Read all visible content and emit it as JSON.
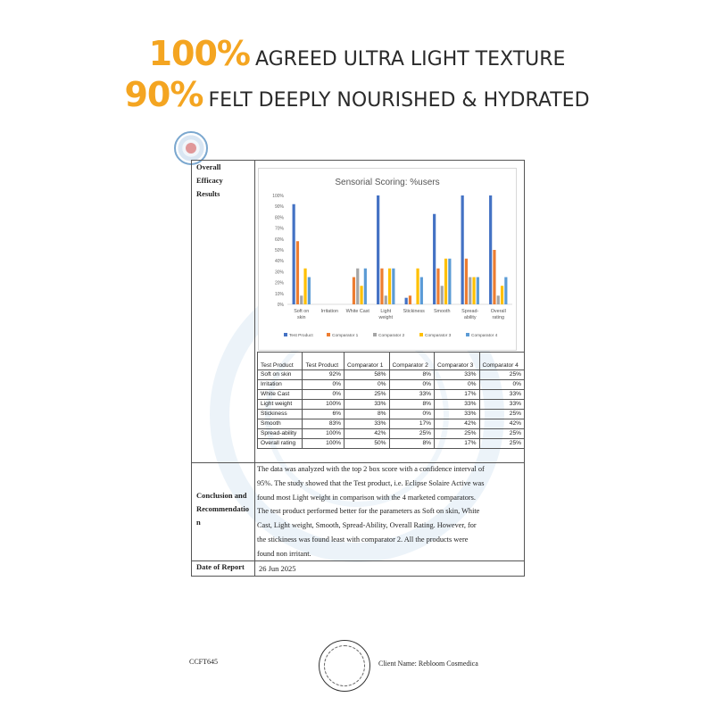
{
  "headline": {
    "line1": {
      "percent": "100%",
      "text": "AGREED ULTRA LIGHT TEXTURE"
    },
    "line2": {
      "percent": "90%",
      "text": "FELT DEEPLY NOURISHED & HYDRATED"
    }
  },
  "report": {
    "efficacy_label": [
      "Overall",
      "Efficacy",
      "Results"
    ],
    "conclusion_label": [
      "Conclusion and",
      "Recommendatio",
      "n"
    ],
    "conclusion_lines": [
      "The data was analyzed with the top 2 box score with a confidence interval of",
      "95%. The study showed that the Test product, i.e. Eclipse Solaire Active was",
      "found most Light weight in comparison with the 4 marketed comparators.",
      "The test product performed better for the parameters as Soft on skin, White",
      "Cast, Light weight, Smooth, Spread-Ability, Overall Rating. However, for",
      "the stickiness was found least with comparator 2. All the products were",
      "found non irritant."
    ],
    "date_label": "Date of Report",
    "date_value": "26 Jun 2025"
  },
  "table": {
    "headers": [
      "Test Product",
      "Test Product",
      "Comparator 1",
      "Comparator 2",
      "Comparator 3",
      "Comparator 4"
    ],
    "rows": [
      [
        "Soft on skin",
        "92%",
        "58%",
        "8%",
        "33%",
        "25%"
      ],
      [
        "Irritation",
        "0%",
        "0%",
        "0%",
        "0%",
        "0%"
      ],
      [
        "White Cast",
        "0%",
        "25%",
        "33%",
        "17%",
        "33%"
      ],
      [
        "Light weight",
        "100%",
        "33%",
        "8%",
        "33%",
        "33%"
      ],
      [
        "Stickiness",
        "6%",
        "8%",
        "0%",
        "33%",
        "25%"
      ],
      [
        "Smooth",
        "83%",
        "33%",
        "17%",
        "42%",
        "42%"
      ],
      [
        "Spread-ability",
        "100%",
        "42%",
        "25%",
        "25%",
        "25%"
      ],
      [
        "Overall rating",
        "100%",
        "50%",
        "8%",
        "17%",
        "25%"
      ]
    ]
  },
  "footer": {
    "code": "CCFT645",
    "client": "Client Name: Rebloom Cosmedica"
  },
  "colors": {
    "accent": "#f4a521",
    "series": [
      "#4472c4",
      "#ed7d31",
      "#a5a5a5",
      "#ffc000",
      "#5b9bd5"
    ]
  },
  "chart_data": {
    "type": "bar",
    "title": "Sensorial Scoring: %users",
    "categories": [
      [
        "Soft on",
        "skin"
      ],
      [
        "Irritation"
      ],
      [
        "White Cast"
      ],
      [
        "Light",
        "weight"
      ],
      [
        "Stickiness"
      ],
      [
        "Smooth"
      ],
      [
        "Spread-",
        "ability"
      ],
      [
        "Overall",
        "rating"
      ]
    ],
    "series": [
      {
        "name": "Test Product",
        "values": [
          92,
          0,
          0,
          100,
          6,
          83,
          100,
          100
        ]
      },
      {
        "name": "Comparator 1",
        "values": [
          58,
          0,
          25,
          33,
          8,
          33,
          42,
          50
        ]
      },
      {
        "name": "Comparator 2",
        "values": [
          8,
          0,
          33,
          8,
          0,
          17,
          25,
          8
        ]
      },
      {
        "name": "Comparator 3",
        "values": [
          33,
          0,
          17,
          33,
          33,
          42,
          25,
          17
        ]
      },
      {
        "name": "Comparator 4",
        "values": [
          25,
          0,
          33,
          33,
          25,
          42,
          25,
          25
        ]
      }
    ],
    "ylim": [
      0,
      100
    ],
    "yticks": [
      "0%",
      "10%",
      "20%",
      "30%",
      "40%",
      "50%",
      "60%",
      "70%",
      "80%",
      "90%",
      "100%"
    ],
    "legend": "bottom",
    "grid": false
  }
}
